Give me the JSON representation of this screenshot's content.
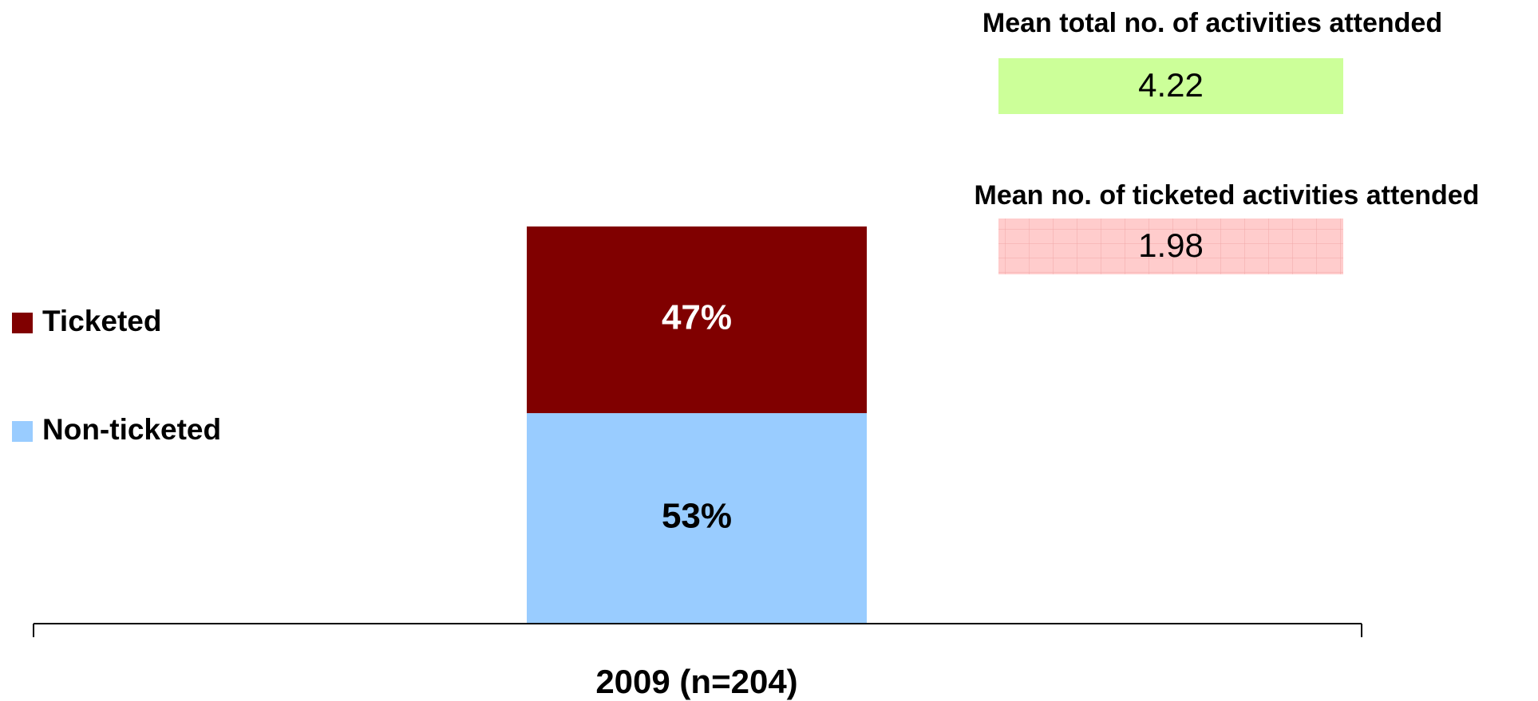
{
  "chart_data": {
    "type": "bar",
    "stacked": true,
    "categories": [
      "2009 (n=204)"
    ],
    "series": [
      {
        "name": "Non-ticketed",
        "color": "#99ccff",
        "label_color": "#000000",
        "values": [
          53
        ],
        "value_labels": [
          "53%"
        ]
      },
      {
        "name": "Ticketed",
        "color": "#800000",
        "label_color": "#ffffff",
        "values": [
          47
        ],
        "value_labels": [
          "47%"
        ]
      }
    ],
    "ylim": [
      0,
      100
    ],
    "annotations": [
      {
        "text": "Mean total no. of activities attended",
        "value": 4.22,
        "color": "#ccff99"
      },
      {
        "text": "Mean no. of ticketed activities attended",
        "value": 1.98,
        "color": "#ffcccc"
      }
    ]
  }
}
